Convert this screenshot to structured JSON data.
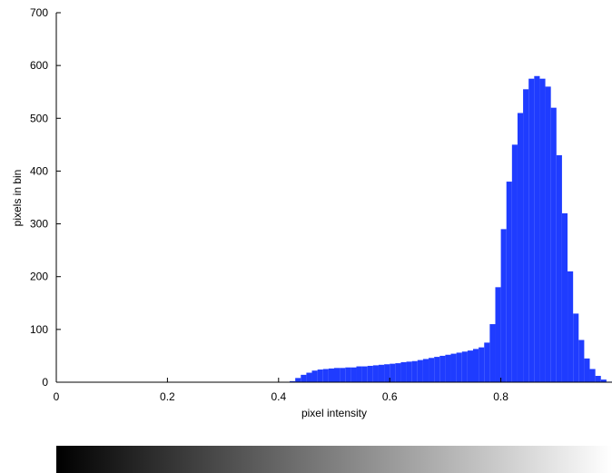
{
  "chart_data": {
    "type": "bar",
    "title": "",
    "xlabel": "pixel intensity",
    "ylabel": "pixels in bin",
    "xlim": [
      0,
      1
    ],
    "ylim": [
      0,
      700
    ],
    "x_ticks": [
      0,
      0.2,
      0.4,
      0.6,
      0.8
    ],
    "x_tick_labels": [
      "0",
      "0.2",
      "0.4",
      "0.6",
      "0.8"
    ],
    "y_ticks": [
      0,
      100,
      200,
      300,
      400,
      500,
      600,
      700
    ],
    "y_tick_labels": [
      "0",
      "100",
      "200",
      "300",
      "400",
      "500",
      "600",
      "700"
    ],
    "grid": false,
    "legend": "none",
    "bar_color": "#1f3cff",
    "colorbar": {
      "from_color": "#000000",
      "to_color": "#ffffff",
      "range": [
        0,
        1
      ]
    },
    "series": [
      {
        "x": [
          0.42,
          0.43,
          0.44,
          0.45,
          0.46,
          0.47,
          0.48,
          0.49,
          0.5,
          0.51,
          0.52,
          0.53,
          0.54,
          0.55,
          0.56,
          0.57,
          0.58,
          0.59,
          0.6,
          0.61,
          0.62,
          0.63,
          0.64,
          0.65,
          0.66,
          0.67,
          0.68,
          0.69,
          0.7,
          0.71,
          0.72,
          0.73,
          0.74,
          0.75,
          0.76,
          0.77,
          0.78,
          0.79,
          0.8,
          0.81,
          0.82,
          0.83,
          0.84,
          0.85,
          0.86,
          0.87,
          0.88,
          0.89,
          0.9,
          0.91,
          0.92,
          0.93,
          0.94,
          0.95,
          0.96,
          0.97,
          0.98,
          0.99
        ],
        "values": [
          2,
          8,
          14,
          18,
          22,
          24,
          25,
          26,
          27,
          27,
          28,
          28,
          30,
          30,
          31,
          32,
          33,
          34,
          35,
          36,
          38,
          39,
          40,
          42,
          44,
          46,
          48,
          50,
          52,
          54,
          56,
          58,
          60,
          63,
          66,
          75,
          110,
          180,
          290,
          380,
          450,
          510,
          555,
          575,
          580,
          575,
          560,
          520,
          430,
          320,
          210,
          130,
          80,
          45,
          25,
          12,
          5,
          1
        ]
      }
    ]
  }
}
